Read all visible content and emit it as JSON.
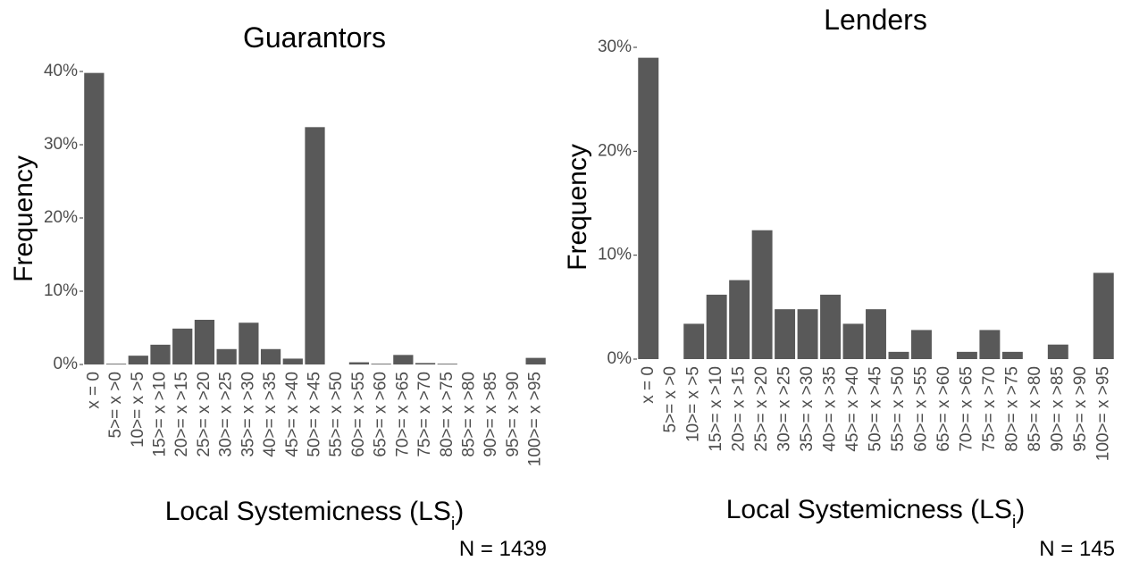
{
  "chart_data": [
    {
      "type": "bar",
      "title": "Guarantors",
      "ylabel": "Frequency",
      "xlabel": [
        "Local Systemicness (LS",
        "i",
        ")"
      ],
      "annotation": "N = 1439",
      "categories": [
        "x = 0",
        "5>= x >0",
        "10>= x >5",
        "15>= x >10",
        "20>= x >15",
        "25>= x >20",
        "30>= x >25",
        "35>= x >30",
        "40>= x >35",
        "45>= x >40",
        "50>= x >45",
        "55>= x >50",
        "60>= x >55",
        "65>= x >60",
        "70>= x >65",
        "75>= x >70",
        "80>= x >75",
        "85>= x >80",
        "90>= x >85",
        "95>= x >90",
        "100>= x >95"
      ],
      "values": [
        39.8,
        0.1,
        1.2,
        2.7,
        4.9,
        6.1,
        2.1,
        5.7,
        2.1,
        0.8,
        32.4,
        0,
        0.3,
        0.1,
        1.3,
        0.2,
        0.1,
        0,
        0,
        0,
        0.9
      ],
      "color": "#595959",
      "ylim": [
        0,
        40
      ],
      "yticks": [
        {
          "value": 0,
          "label": "0%"
        },
        {
          "value": 10,
          "label": "10%"
        },
        {
          "value": 20,
          "label": "20%"
        },
        {
          "value": 30,
          "label": "30%"
        },
        {
          "value": 40,
          "label": "40%"
        }
      ]
    },
    {
      "type": "bar",
      "title": "Lenders",
      "ylabel": "Frequency",
      "xlabel": [
        "Local Systemicness (LS",
        "i",
        ")"
      ],
      "annotation": "N = 145",
      "categories": [
        "x = 0",
        "5>= x >0",
        "10>= x >5",
        "15>= x >10",
        "20>= x >15",
        "25>= x >20",
        "30>= x >25",
        "35>= x >30",
        "40>= x >35",
        "45>= x >40",
        "50>= x >45",
        "55>= x >50",
        "60>= x >55",
        "65>= x >60",
        "70>= x >65",
        "75>= x >70",
        "80>= x >75",
        "85>= x >80",
        "90>= x >85",
        "95>= x >90",
        "100>= x >95"
      ],
      "values": [
        29.0,
        0,
        3.4,
        6.2,
        7.6,
        12.4,
        4.8,
        4.8,
        6.2,
        3.4,
        4.8,
        0.7,
        2.8,
        0,
        0.7,
        2.8,
        0.7,
        0,
        1.4,
        0,
        8.3
      ],
      "color": "#595959",
      "ylim": [
        0,
        30
      ],
      "yticks": [
        {
          "value": 0,
          "label": "0%"
        },
        {
          "value": 10,
          "label": "10%"
        },
        {
          "value": 20,
          "label": "20%"
        },
        {
          "value": 30,
          "label": "30%"
        }
      ]
    }
  ]
}
